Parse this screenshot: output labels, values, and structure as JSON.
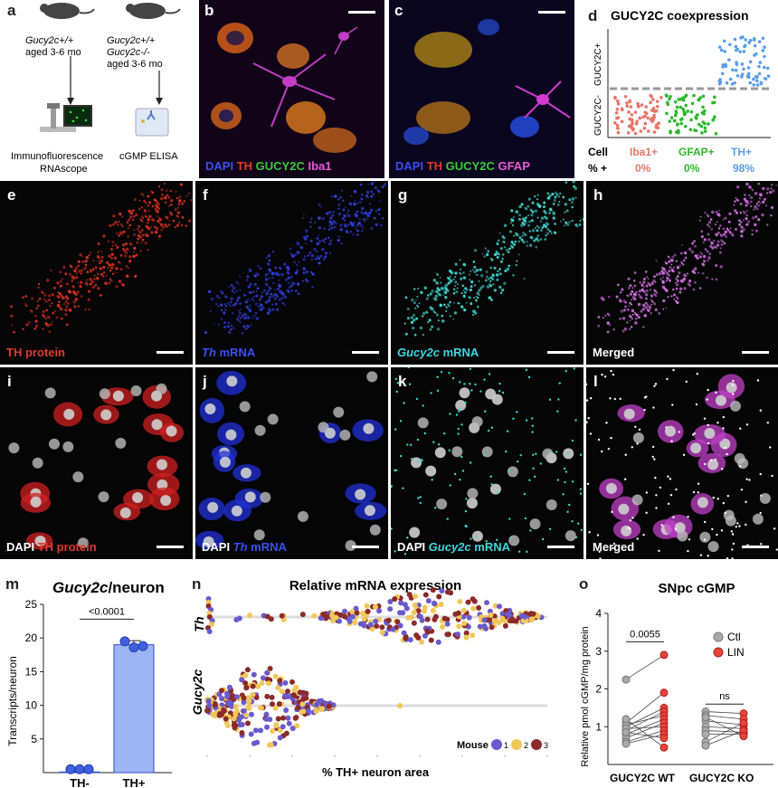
{
  "panels": {
    "a": {
      "label": "a",
      "mouse_wt_genotype": "Gucy2c+/+",
      "mouse_wt_age": "aged 3-6 mo",
      "mouse_ko_genotype_line1": "Gucy2c+/+",
      "mouse_ko_genotype_line2": "Gucy2c-/-",
      "mouse_ko_age": "aged 3-6 mo",
      "method_left_line1": "Immunofluorescence",
      "method_left_line2": "RNAscope",
      "method_right": "cGMP ELISA"
    },
    "b": {
      "label": "b",
      "cap_dapi": "DAPI",
      "cap_th": "TH",
      "cap_gucy": "GUCY2C",
      "cap_iba": "Iba1"
    },
    "c": {
      "label": "c",
      "cap_dapi": "DAPI",
      "cap_th": "TH",
      "cap_gucy": "GUCY2C",
      "cap_gfap": "GFAP"
    },
    "d": {
      "label": "d",
      "title": "GUCY2C coexpression",
      "ylabel_pos": "GUCY2C+",
      "ylabel_neg": "GUCY2C-",
      "row_cell": "Cell",
      "row_pct": "% +",
      "groups": [
        {
          "name": "Iba1+",
          "pct": "0%",
          "color": "#e8756a"
        },
        {
          "name": "GFAP+",
          "pct": "0%",
          "color": "#2db82d"
        },
        {
          "name": "TH+",
          "pct": "98%",
          "color": "#5b9ee8"
        }
      ]
    },
    "e": {
      "label": "e",
      "cap": "TH protein"
    },
    "f": {
      "label": "f",
      "cap_it": "Th",
      "cap_rest": " mRNA"
    },
    "g": {
      "label": "g",
      "cap_it": "Gucy2c",
      "cap_rest": " mRNA"
    },
    "h": {
      "label": "h",
      "cap": "Merged"
    },
    "i": {
      "label": "i",
      "cap_dapi": "DAPI ",
      "cap_rest": "TH protein"
    },
    "j": {
      "label": "j",
      "cap_dapi": "DAPI ",
      "cap_it": "Th",
      "cap_rest": " mRNA"
    },
    "k": {
      "label": "k",
      "cap_dapi": "DAPI ",
      "cap_it": "Gucy2c",
      "cap_rest": " mRNA"
    },
    "l": {
      "label": "l",
      "cap": "Merged"
    },
    "m": {
      "label": "m"
    },
    "n": {
      "label": "n"
    },
    "o": {
      "label": "o"
    }
  },
  "chart_data": [
    {
      "panel": "m",
      "type": "bar",
      "title_it": "Gucy2c",
      "title_rest": "/neuron",
      "ylabel": "Transcripts/neuron",
      "ylim": [
        0,
        25
      ],
      "yticks": [
        "5",
        "10",
        "15",
        "20",
        "25"
      ],
      "categories": [
        "TH-",
        "TH+"
      ],
      "values": [
        0.1,
        19
      ],
      "points": [
        [
          0.1,
          0.1,
          0.1
        ],
        [
          19.5,
          18.6,
          18.8
        ]
      ],
      "error": [
        0.05,
        0.6
      ],
      "pvalue": "<0.0001",
      "color": "#9db5f5"
    },
    {
      "panel": "n",
      "type": "scatter",
      "title": "Relative mRNA expression",
      "xlabel": "% TH+ neuron area",
      "rows": [
        "Th",
        "Gucy2c"
      ],
      "legend_title": "Mouse",
      "series": [
        {
          "name": "1",
          "color": "#6a5acd"
        },
        {
          "name": "2",
          "color": "#f0c85a"
        },
        {
          "name": "3",
          "color": "#8b2a2a"
        }
      ]
    },
    {
      "panel": "o",
      "type": "line",
      "title": "SNpc cGMP",
      "ylabel": "Relative pmol cGMP/mg protein",
      "ylim": [
        0,
        4
      ],
      "yticks": [
        "1",
        "2",
        "3",
        "4"
      ],
      "groups": [
        "GUCY2C WT",
        "GUCY2C KO"
      ],
      "legend": [
        "Ctl",
        "LIN"
      ],
      "colors": [
        "#aaaaaa",
        "#e8443a"
      ],
      "annot_wt": "0.0055",
      "annot_ko": "ns",
      "wt_pairs": [
        [
          2.25,
          2.9
        ],
        [
          1.1,
          1.9
        ],
        [
          1.0,
          1.5
        ],
        [
          0.9,
          1.4
        ],
        [
          1.05,
          1.3
        ],
        [
          0.8,
          1.2
        ],
        [
          0.7,
          1.1
        ],
        [
          0.95,
          1.0
        ],
        [
          0.6,
          0.9
        ],
        [
          0.55,
          0.8
        ],
        [
          1.2,
          0.45
        ],
        [
          0.85,
          0.7
        ]
      ],
      "ko_pairs": [
        [
          1.4,
          1.35
        ],
        [
          1.3,
          1.2
        ],
        [
          1.15,
          1.05
        ],
        [
          1.0,
          0.95
        ],
        [
          0.9,
          0.85
        ],
        [
          0.8,
          0.8
        ],
        [
          0.6,
          1.1
        ],
        [
          0.5,
          0.9
        ],
        [
          1.25,
          0.75
        ]
      ]
    }
  ]
}
